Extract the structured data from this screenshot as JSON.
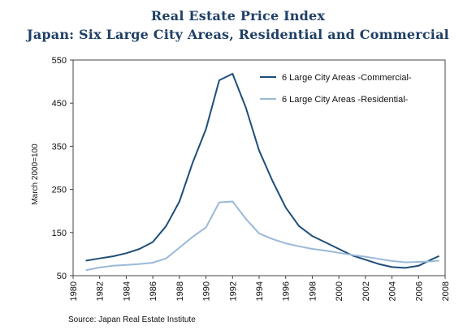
{
  "chart_data": {
    "type": "line",
    "title": "Real Estate Price Index",
    "subtitle": "Japan: Six Large City Areas, Residential and Commercial",
    "ylabel": "March 2000=100",
    "xlabel": "",
    "ylim": [
      50,
      550
    ],
    "xlim": [
      1980,
      2008
    ],
    "yticks": [
      50,
      150,
      250,
      350,
      450,
      550
    ],
    "xticks": [
      1980,
      1982,
      1984,
      1986,
      1988,
      1990,
      1992,
      1994,
      1996,
      1998,
      2000,
      2002,
      2004,
      2006,
      2008
    ],
    "grid": false,
    "legend_position": "top-right",
    "source": "Source: Japan Real Estate Institute",
    "series": [
      {
        "name": "6 Large City Areas -Commercial-",
        "color": "#1f4e79",
        "x": [
          1981,
          1982,
          1983,
          1984,
          1985,
          1986,
          1987,
          1988,
          1989,
          1990,
          1991,
          1992,
          1993,
          1994,
          1995,
          1996,
          1997,
          1998,
          1999,
          2000,
          2001,
          2002,
          2003,
          2004,
          2005,
          2006,
          2007,
          2007.5
        ],
        "values": [
          85,
          90,
          95,
          102,
          112,
          128,
          165,
          222,
          312,
          390,
          503,
          518,
          440,
          340,
          270,
          208,
          165,
          142,
          127,
          112,
          97,
          87,
          77,
          70,
          68,
          73,
          88,
          95
        ]
      },
      {
        "name": "6 Large City Areas -Residential-",
        "color": "#9ab9d8",
        "x": [
          1981,
          1982,
          1983,
          1984,
          1985,
          1986,
          1987,
          1988,
          1989,
          1990,
          1991,
          1992,
          1993,
          1994,
          1995,
          1996,
          1997,
          1998,
          1999,
          2000,
          2001,
          2002,
          2003,
          2004,
          2005,
          2006,
          2007,
          2007.5
        ],
        "values": [
          63,
          69,
          73,
          75,
          77,
          80,
          90,
          115,
          140,
          162,
          220,
          222,
          182,
          148,
          135,
          125,
          118,
          112,
          108,
          103,
          98,
          94,
          89,
          84,
          81,
          82,
          83,
          85
        ]
      }
    ]
  }
}
